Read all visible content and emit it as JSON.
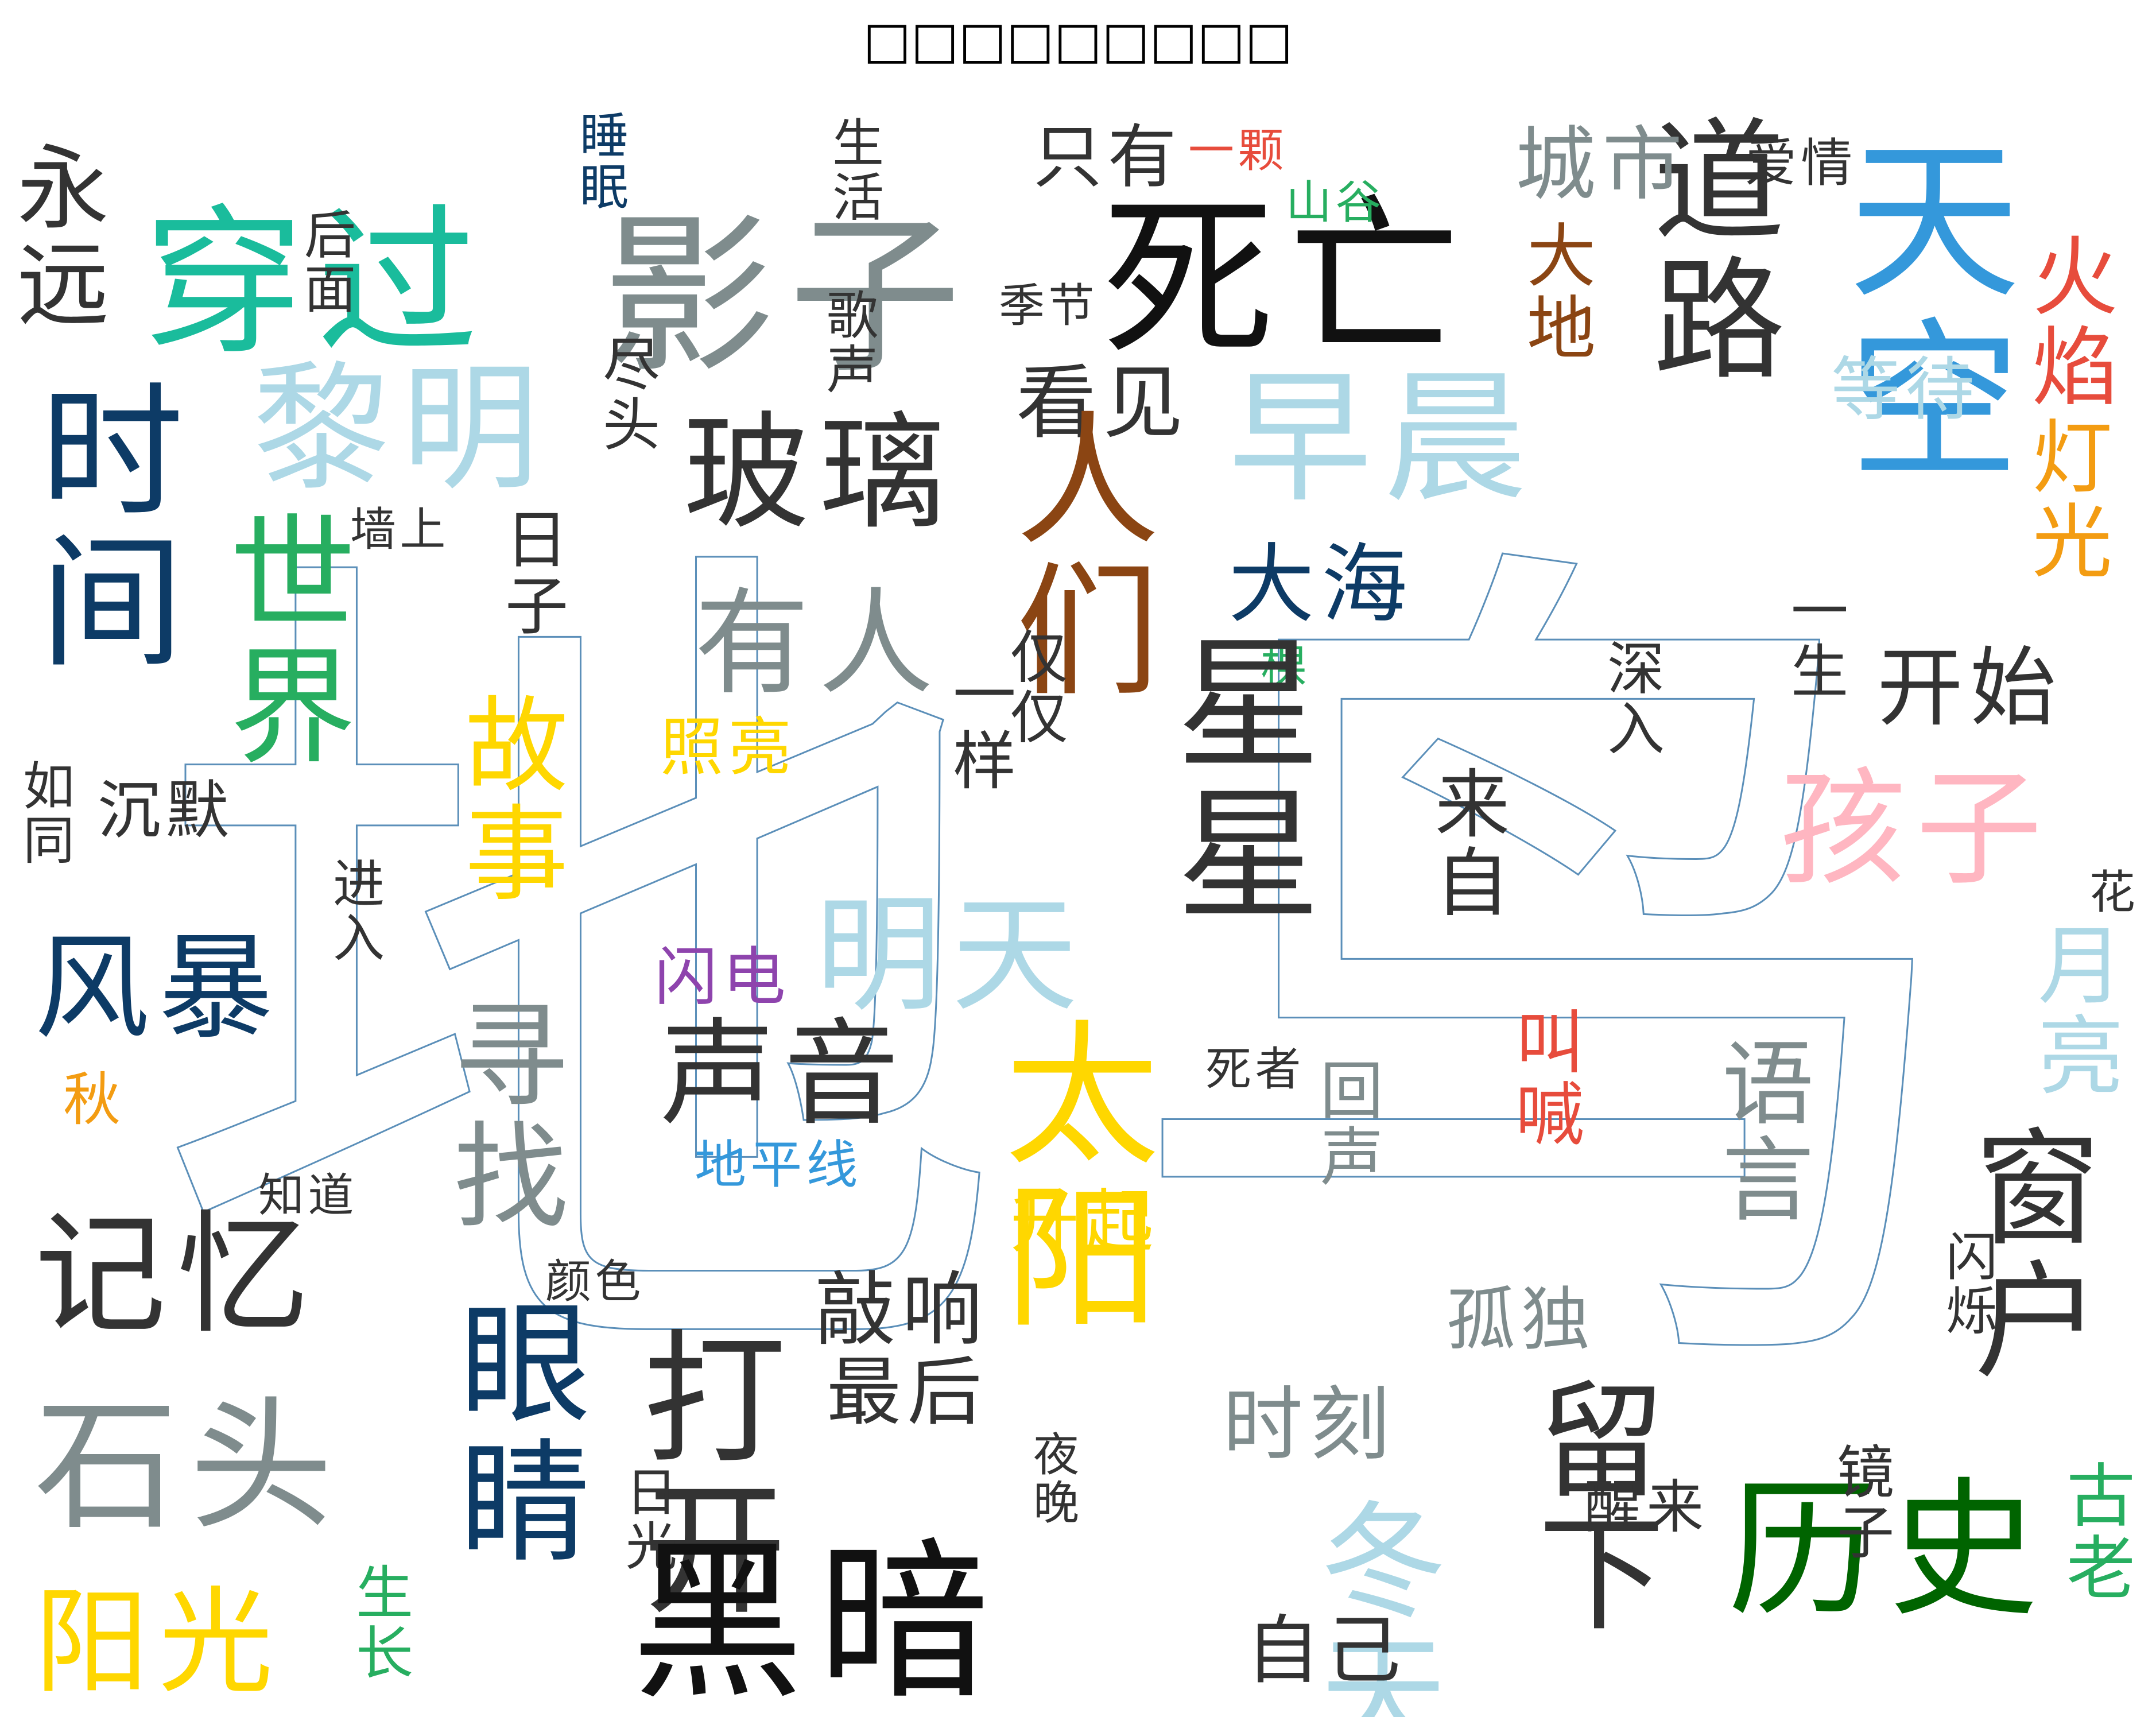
{
  "title": "□□□□□□□□□",
  "background_chars": [
    "地",
    "鸟"
  ],
  "colors": {
    "teal": "#1abc9c",
    "gray": "#7f8c8d",
    "black": "#111111",
    "lightblue": "#add8e6",
    "navy": "#0d3b66",
    "brown": "#8b4513",
    "blue": "#3498db",
    "red": "#e74c3c",
    "gold": "#ffd700",
    "orange": "#f39c12",
    "green": "#27ae60",
    "darkgreen": "#006400",
    "pink": "#ffb6c1",
    "purple": "#8e44ad",
    "darkgray": "#333333"
  },
  "words": [
    {
      "text": "穿过",
      "color": "#1abc9c"
    },
    {
      "text": "影子",
      "color": "#7f8c8d"
    },
    {
      "text": "死亡",
      "color": "#111111"
    },
    {
      "text": "天空",
      "color": "#3498db"
    },
    {
      "text": "永远",
      "color": "#333333"
    },
    {
      "text": "时间",
      "color": "#0d3b66"
    },
    {
      "text": "黎明",
      "color": "#add8e6"
    },
    {
      "text": "玻璃",
      "color": "#333333"
    },
    {
      "text": "早晨",
      "color": "#add8e6"
    },
    {
      "text": "道路",
      "color": "#333333"
    },
    {
      "text": "城市",
      "color": "#7f8c8d"
    },
    {
      "text": "爱情",
      "color": "#333333"
    },
    {
      "text": "只有",
      "color": "#333333"
    },
    {
      "text": "一颗",
      "color": "#e74c3c"
    },
    {
      "text": "山谷",
      "color": "#27ae60"
    },
    {
      "text": "睡眠",
      "color": "#0d3b66"
    },
    {
      "text": "生活",
      "color": "#333333"
    },
    {
      "text": "后面",
      "color": "#333333"
    },
    {
      "text": "季节",
      "color": "#333333"
    },
    {
      "text": "歌声",
      "color": "#333333"
    },
    {
      "text": "看见",
      "color": "#333333"
    },
    {
      "text": "尽头",
      "color": "#333333"
    },
    {
      "text": "大地",
      "color": "#8b4513"
    },
    {
      "text": "火焰",
      "color": "#e74c3c"
    },
    {
      "text": "等待",
      "color": "#add8e6"
    },
    {
      "text": "灯光",
      "color": "#f39c12"
    },
    {
      "text": "世界",
      "color": "#27ae60"
    },
    {
      "text": "墙上",
      "color": "#333333"
    },
    {
      "text": "日子",
      "color": "#333333"
    },
    {
      "text": "有人",
      "color": "#7f8c8d"
    },
    {
      "text": "人们",
      "color": "#8b4513"
    },
    {
      "text": "大海",
      "color": "#0d3b66"
    },
    {
      "text": "一棵",
      "color": "#27ae60"
    },
    {
      "text": "星星",
      "color": "#333333"
    },
    {
      "text": "一生",
      "color": "#333333"
    },
    {
      "text": "开始",
      "color": "#333333"
    },
    {
      "text": "孩子",
      "color": "#ffb6c1"
    },
    {
      "text": "照亮",
      "color": "#ffd700"
    },
    {
      "text": "故事",
      "color": "#ffd700"
    },
    {
      "text": "一样",
      "color": "#333333"
    },
    {
      "text": "仅仅",
      "color": "#333333"
    },
    {
      "text": "深入",
      "color": "#333333"
    },
    {
      "text": "来自",
      "color": "#333333"
    },
    {
      "text": "如同",
      "color": "#333333"
    },
    {
      "text": "沉默",
      "color": "#333333"
    },
    {
      "text": "花",
      "color": "#333333"
    },
    {
      "text": "风暴",
      "color": "#0d3b66"
    },
    {
      "text": "进入",
      "color": "#333333"
    },
    {
      "text": "明天",
      "color": "#add8e6"
    },
    {
      "text": "闪电",
      "color": "#8e44ad"
    },
    {
      "text": "月亮",
      "color": "#add8e6"
    },
    {
      "text": "秋",
      "color": "#f39c12"
    },
    {
      "text": "声音",
      "color": "#333333"
    },
    {
      "text": "寻找",
      "color": "#7f8c8d"
    },
    {
      "text": "太阳",
      "color": "#ffd700"
    },
    {
      "text": "死者",
      "color": "#333333"
    },
    {
      "text": "回声",
      "color": "#7f8c8d"
    },
    {
      "text": "叫喊",
      "color": "#e74c3c"
    },
    {
      "text": "语言",
      "color": "#7f8c8d"
    },
    {
      "text": "地平线",
      "color": "#3498db"
    },
    {
      "text": "知道",
      "color": "#333333"
    },
    {
      "text": "升起",
      "color": "#ffd700"
    },
    {
      "text": "窗户",
      "color": "#333333"
    },
    {
      "text": "记忆",
      "color": "#333333"
    },
    {
      "text": "颜色",
      "color": "#333333"
    },
    {
      "text": "闪烁",
      "color": "#333333"
    },
    {
      "text": "敲响",
      "color": "#333333"
    },
    {
      "text": "孤独",
      "color": "#7f8c8d"
    },
    {
      "text": "眼睛",
      "color": "#0d3b66"
    },
    {
      "text": "打开",
      "color": "#333333"
    },
    {
      "text": "石头",
      "color": "#7f8c8d"
    },
    {
      "text": "最后",
      "color": "#333333"
    },
    {
      "text": "时刻",
      "color": "#7f8c8d"
    },
    {
      "text": "冬天",
      "color": "#add8e6"
    },
    {
      "text": "留下",
      "color": "#333333"
    },
    {
      "text": "历史",
      "color": "#006400"
    },
    {
      "text": "夜晚",
      "color": "#333333"
    },
    {
      "text": "日光",
      "color": "#333333"
    },
    {
      "text": "醒来",
      "color": "#333333"
    },
    {
      "text": "镜子",
      "color": "#333333"
    },
    {
      "text": "古老",
      "color": "#27ae60"
    },
    {
      "text": "阳光",
      "color": "#ffd700"
    },
    {
      "text": "生长",
      "color": "#27ae60"
    },
    {
      "text": "黑暗",
      "color": "#111111"
    },
    {
      "text": "自己",
      "color": "#333333"
    }
  ]
}
